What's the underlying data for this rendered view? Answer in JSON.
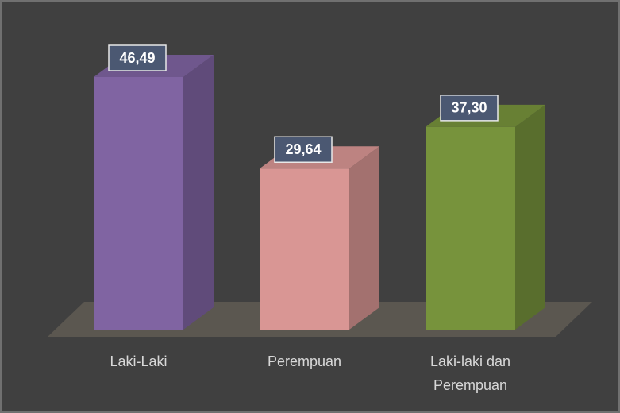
{
  "chart_data": {
    "type": "bar3d",
    "categories": [
      "Laki-Laki",
      "Perempuan",
      "Laki-laki dan Perempuan"
    ],
    "values": [
      46.49,
      29.64,
      37.3
    ],
    "value_labels": [
      "46,49",
      "29,64",
      "37,30"
    ],
    "colors": [
      "#8064a2",
      "#d99694",
      "#77933c"
    ]
  }
}
